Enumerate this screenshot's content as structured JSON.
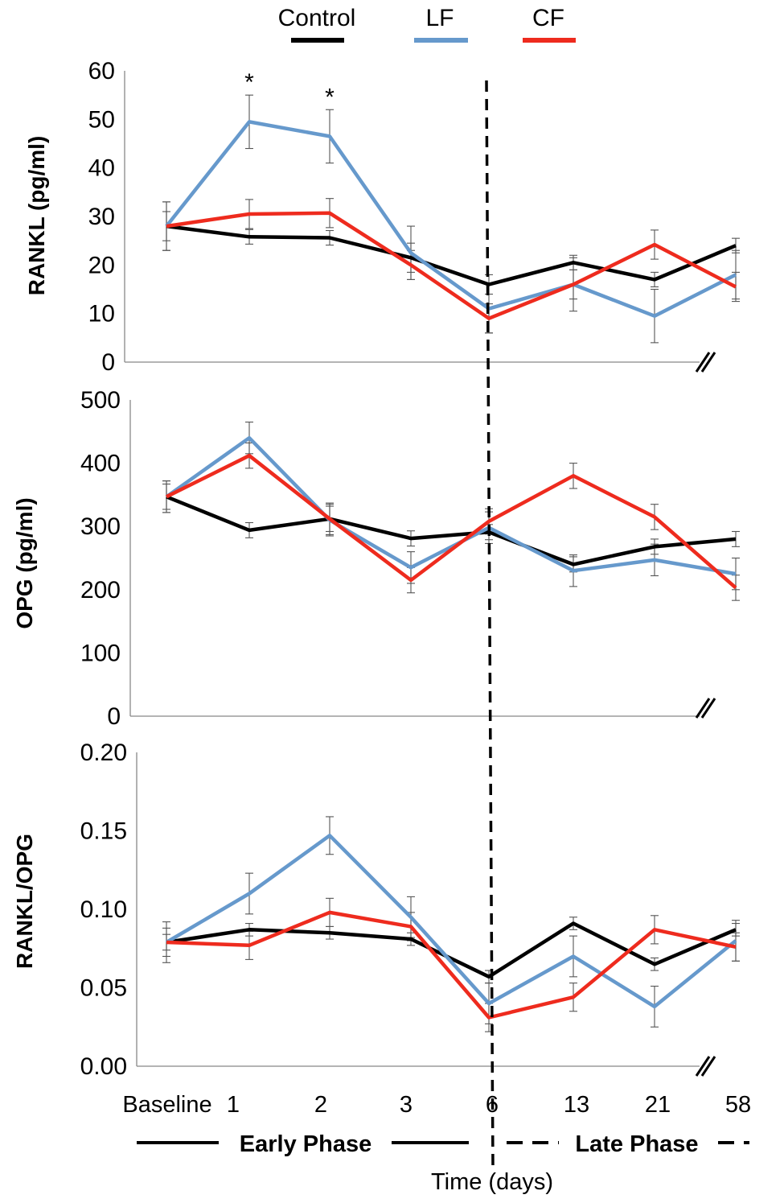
{
  "chart_data": {
    "type": "line",
    "legend": [
      {
        "name": "Control",
        "color": "#000000"
      },
      {
        "name": "LF",
        "color": "#6699cc"
      },
      {
        "name": "CF",
        "color": "#ee2b1e"
      }
    ],
    "categories": [
      "Baseline",
      "1",
      "2",
      "3",
      "6",
      "13",
      "21",
      "58"
    ],
    "xlabel": "Time (days)",
    "phases": {
      "early": "Early Phase",
      "late": "Late Phase",
      "divider_after_category": "6"
    },
    "panels": [
      {
        "id": "rankl",
        "ylabel": "RANKL (pg/ml)",
        "ylim": [
          0,
          60
        ],
        "yticks": [
          "0",
          "10",
          "20",
          "30",
          "40",
          "50",
          "60"
        ],
        "annotations": [
          {
            "text": "*",
            "category": "1"
          },
          {
            "text": "*",
            "category": "2"
          }
        ],
        "series": [
          {
            "name": "Control",
            "color": "#000000",
            "values": [
              28,
              25.8,
              25.6,
              21.5,
              16,
              20.5,
              17,
              24
            ],
            "errors": [
              3,
              1.5,
              1.5,
              3,
              2,
              1.5,
              1.5,
              1.5
            ]
          },
          {
            "name": "LF",
            "color": "#6699cc",
            "values": [
              28,
              49.5,
              46.5,
              22.5,
              11,
              16,
              9.5,
              18
            ],
            "errors": [
              5,
              5.5,
              5.5,
              5.5,
              5,
              5.5,
              5.5,
              5
            ]
          },
          {
            "name": "CF",
            "color": "#ee2b1e",
            "values": [
              28,
              30.5,
              30.7,
              20,
              9,
              16,
              24.2,
              15.5
            ],
            "errors": [
              5,
              3,
              3,
              3,
              3,
              3,
              3,
              3
            ]
          }
        ]
      },
      {
        "id": "opg",
        "ylabel": "OPG (pg/ml)",
        "ylim": [
          0,
          500
        ],
        "yticks": [
          "0",
          "100",
          "200",
          "300",
          "400",
          "500"
        ],
        "annotations": [],
        "series": [
          {
            "name": "Control",
            "color": "#000000",
            "values": [
              347,
              294,
              312,
              281,
              291,
              240,
              268,
              280
            ],
            "errors": [
              25,
              12,
              25,
              12,
              12,
              12,
              12,
              12
            ]
          },
          {
            "name": "LF",
            "color": "#6699cc",
            "values": [
              347,
              440,
              310,
              235,
              298,
              230,
              247,
              225
            ],
            "errors": [
              25,
              25,
              25,
              25,
              25,
              25,
              25,
              25
            ]
          },
          {
            "name": "CF",
            "color": "#ee2b1e",
            "values": [
              347,
              412,
              312,
              215,
              308,
              380,
              315,
              203
            ],
            "errors": [
              20,
              20,
              20,
              20,
              20,
              20,
              20,
              20
            ]
          }
        ]
      },
      {
        "id": "ratio",
        "ylabel": "RANKL/OPG",
        "ylim": [
          0,
          0.2
        ],
        "yticks": [
          "0.00",
          "0.05",
          "0.10",
          "0.15",
          "0.20"
        ],
        "annotations": [],
        "series": [
          {
            "name": "Control",
            "color": "#000000",
            "values": [
              0.079,
              0.087,
              0.085,
              0.081,
              0.057,
              0.091,
              0.065,
              0.087
            ],
            "errors": [
              0.005,
              0.004,
              0.004,
              0.004,
              0.004,
              0.004,
              0.004,
              0.004
            ]
          },
          {
            "name": "LF",
            "color": "#6699cc",
            "values": [
              0.079,
              0.11,
              0.147,
              0.095,
              0.04,
              0.07,
              0.038,
              0.08
            ],
            "errors": [
              0.013,
              0.013,
              0.012,
              0.013,
              0.013,
              0.013,
              0.013,
              0.013
            ]
          },
          {
            "name": "CF",
            "color": "#ee2b1e",
            "values": [
              0.079,
              0.077,
              0.098,
              0.089,
              0.031,
              0.044,
              0.087,
              0.076
            ],
            "errors": [
              0.009,
              0.009,
              0.009,
              0.009,
              0.009,
              0.009,
              0.009,
              0.009
            ]
          }
        ]
      }
    ]
  }
}
